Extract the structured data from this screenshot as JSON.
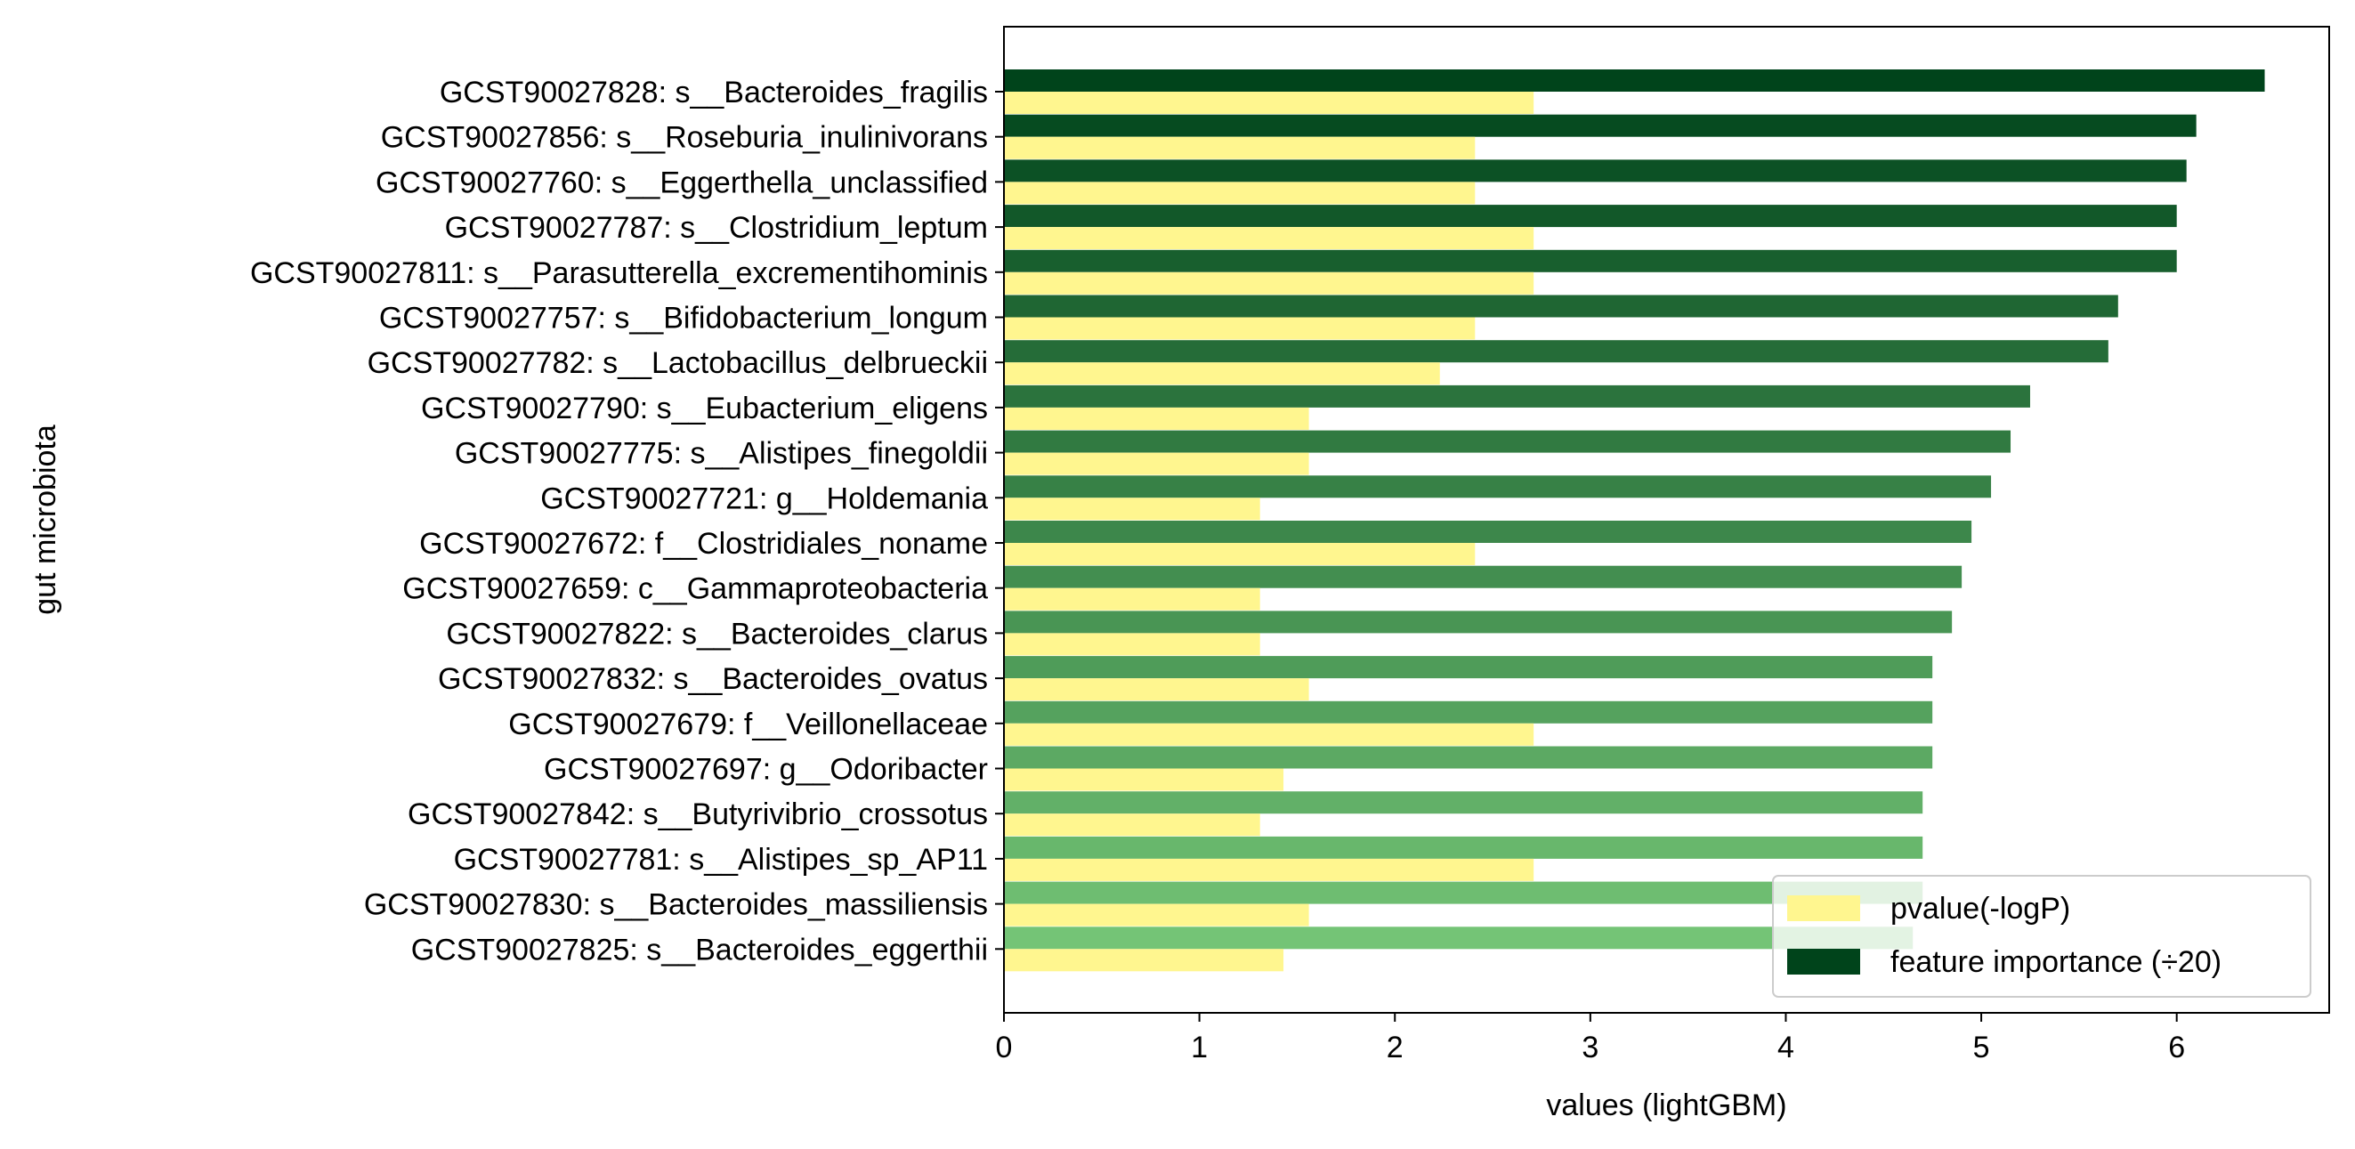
{
  "chart_data": {
    "type": "bar",
    "orientation": "horizontal",
    "title": "",
    "xlabel": "values (lightGBM)",
    "ylabel": "gut microbiota",
    "xlim": [
      0,
      6.78
    ],
    "xticks": [
      0,
      1,
      2,
      3,
      4,
      5,
      6
    ],
    "grid": false,
    "legend_position": "lower-right",
    "categories": [
      "GCST90027828: s__Bacteroides_fragilis",
      "GCST90027856: s__Roseburia_inulinivorans",
      "GCST90027760: s__Eggerthella_unclassified",
      "GCST90027787: s__Clostridium_leptum",
      "GCST90027811: s__Parasutterella_excrementihominis",
      "GCST90027757: s__Bifidobacterium_longum",
      "GCST90027782: s__Lactobacillus_delbrueckii",
      "GCST90027790: s__Eubacterium_eligens",
      "GCST90027775: s__Alistipes_finegoldii",
      "GCST90027721: g__Holdemania",
      "GCST90027672: f__Clostridiales_noname",
      "GCST90027659: c__Gammaproteobacteria",
      "GCST90027822: s__Bacteroides_clarus",
      "GCST90027832: s__Bacteroides_ovatus",
      "GCST90027679: f__Veillonellaceae",
      "GCST90027697: g__Odoribacter",
      "GCST90027842: s__Butyrivibrio_crossotus",
      "GCST90027781: s__Alistipes_sp_AP11",
      "GCST90027830: s__Bacteroides_massiliensis",
      "GCST90027825: s__Bacteroides_eggerthii"
    ],
    "series": [
      {
        "name": "pvalue(-logP)",
        "color": "#fff68f",
        "values": [
          2.71,
          2.41,
          2.41,
          2.71,
          2.71,
          2.41,
          2.23,
          1.56,
          1.56,
          1.31,
          2.41,
          1.31,
          1.31,
          1.56,
          2.71,
          1.43,
          1.31,
          2.71,
          1.56,
          1.43
        ]
      },
      {
        "name": "feature importance (÷20)",
        "color": "#00441b",
        "color_gradient": [
          "#00441b",
          "#74c476"
        ],
        "values": [
          6.45,
          6.1,
          6.05,
          6.0,
          6.0,
          5.7,
          5.65,
          5.25,
          5.15,
          5.05,
          4.95,
          4.9,
          4.85,
          4.75,
          4.75,
          4.75,
          4.7,
          4.7,
          4.7,
          4.65
        ]
      }
    ]
  }
}
